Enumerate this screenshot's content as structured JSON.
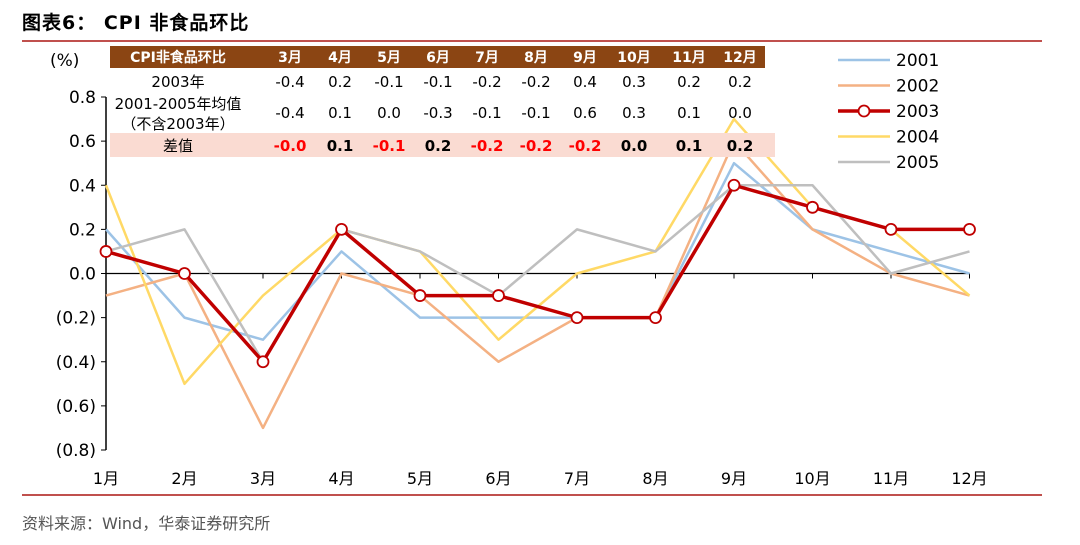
{
  "title": "图表6： CPI 非食品环比",
  "source": "资料来源：Wind，华泰证券研究所",
  "colors": {
    "accent_rule": "#c0504d",
    "table_header": "#8b4513",
    "diff_row_bg": "#fadbd2",
    "diff_negative": "#ff0000",
    "diff_positive": "#000000"
  },
  "chart_data": {
    "type": "line",
    "ylabel": "(%)",
    "ylim": [
      -0.8,
      0.8
    ],
    "yticks": [
      0.8,
      0.6,
      0.4,
      0.2,
      0.0,
      -0.2,
      -0.4,
      -0.6,
      -0.8
    ],
    "ytick_labels": [
      "0.8",
      "0.6",
      "0.4",
      "0.2",
      "0.0",
      "(0.2)",
      "(0.4)",
      "(0.6)",
      "(0.8)"
    ],
    "categories": [
      "1月",
      "2月",
      "3月",
      "4月",
      "5月",
      "6月",
      "7月",
      "8月",
      "9月",
      "10月",
      "11月",
      "12月"
    ],
    "legend_position": "right",
    "series": [
      {
        "name": "2001",
        "color": "#9dc3e6",
        "values": [
          0.2,
          -0.2,
          -0.3,
          0.1,
          -0.2,
          -0.2,
          -0.2,
          -0.2,
          0.5,
          0.2,
          0.1,
          0.0
        ]
      },
      {
        "name": "2002",
        "color": "#f4b183",
        "values": [
          -0.1,
          0.0,
          -0.7,
          0.0,
          -0.1,
          -0.4,
          -0.2,
          -0.2,
          0.6,
          0.2,
          0.0,
          -0.1
        ]
      },
      {
        "name": "2003",
        "color": "#c00000",
        "values": [
          0.1,
          0.0,
          -0.4,
          0.2,
          -0.1,
          -0.1,
          -0.2,
          -0.2,
          0.4,
          0.3,
          0.2,
          0.2
        ],
        "markers": true
      },
      {
        "name": "2004",
        "color": "#ffd966",
        "values": [
          0.4,
          -0.5,
          -0.1,
          0.2,
          0.1,
          -0.3,
          0.0,
          0.1,
          0.7,
          0.3,
          0.2,
          -0.1
        ]
      },
      {
        "name": "2005",
        "color": "#bfbfbf",
        "values": [
          0.1,
          0.2,
          -0.4,
          0.2,
          0.1,
          -0.1,
          0.2,
          0.1,
          0.4,
          0.4,
          0.0,
          0.1
        ]
      }
    ],
    "table": {
      "header": [
        "CPI非食品环比",
        "3月",
        "4月",
        "5月",
        "6月",
        "7月",
        "8月",
        "9月",
        "10月",
        "11月",
        "12月"
      ],
      "rows": [
        {
          "label": "2003年",
          "values": [
            "-0.4",
            "0.2",
            "-0.1",
            "-0.1",
            "-0.2",
            "-0.2",
            "0.4",
            "0.3",
            "0.2",
            "0.2"
          ]
        },
        {
          "label": "2001-2005年均值",
          "label2": "（不含2003年）",
          "values": [
            "-0.4",
            "0.1",
            "0.0",
            "-0.3",
            "-0.1",
            "-0.1",
            "0.6",
            "0.3",
            "0.1",
            "0.0"
          ]
        },
        {
          "label": "差值",
          "values": [
            "-0.0",
            "0.1",
            "-0.1",
            "0.2",
            "-0.2",
            "-0.2",
            "-0.2",
            "0.0",
            "0.1",
            "0.2"
          ]
        }
      ]
    }
  }
}
